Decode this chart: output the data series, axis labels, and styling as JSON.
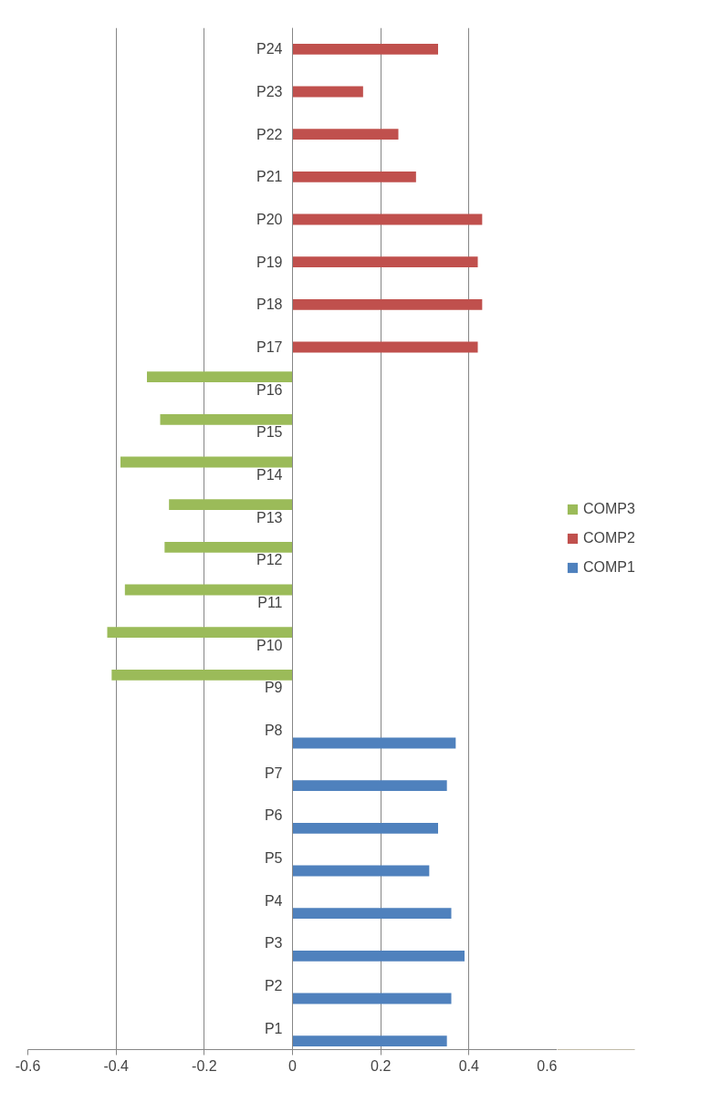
{
  "chart_data": {
    "type": "bar",
    "orientation": "horizontal",
    "categories": [
      "P24",
      "P23",
      "P22",
      "P21",
      "P20",
      "P19",
      "P18",
      "P17",
      "P16",
      "P15",
      "P14",
      "P13",
      "P12",
      "P11",
      "P10",
      "P9",
      "P8",
      "P7",
      "P6",
      "P5",
      "P4",
      "P3",
      "P2",
      "P1"
    ],
    "series": [
      {
        "name": "COMP1",
        "color": "#4f81bd",
        "values": [
          null,
          null,
          null,
          null,
          null,
          null,
          null,
          null,
          null,
          null,
          null,
          null,
          null,
          null,
          null,
          null,
          0.37,
          0.35,
          0.33,
          0.31,
          0.36,
          0.39,
          0.36,
          0.35
        ]
      },
      {
        "name": "COMP2",
        "color": "#c0504d",
        "values": [
          0.33,
          0.16,
          0.24,
          0.28,
          0.43,
          0.42,
          0.43,
          0.42,
          null,
          null,
          null,
          null,
          null,
          null,
          null,
          null,
          null,
          null,
          null,
          null,
          null,
          null,
          null,
          null
        ]
      },
      {
        "name": "COMP3",
        "color": "#9bbb59",
        "values": [
          null,
          null,
          null,
          null,
          null,
          null,
          null,
          null,
          -0.33,
          -0.3,
          -0.39,
          -0.28,
          -0.29,
          -0.38,
          -0.42,
          -0.41,
          null,
          null,
          null,
          null,
          null,
          null,
          null,
          null
        ]
      }
    ],
    "xlim": [
      -0.6,
      0.6
    ],
    "xticks": [
      -0.6,
      -0.4,
      -0.2,
      0,
      0.2,
      0.4,
      0.6
    ],
    "grid": "x",
    "legend": "right"
  }
}
